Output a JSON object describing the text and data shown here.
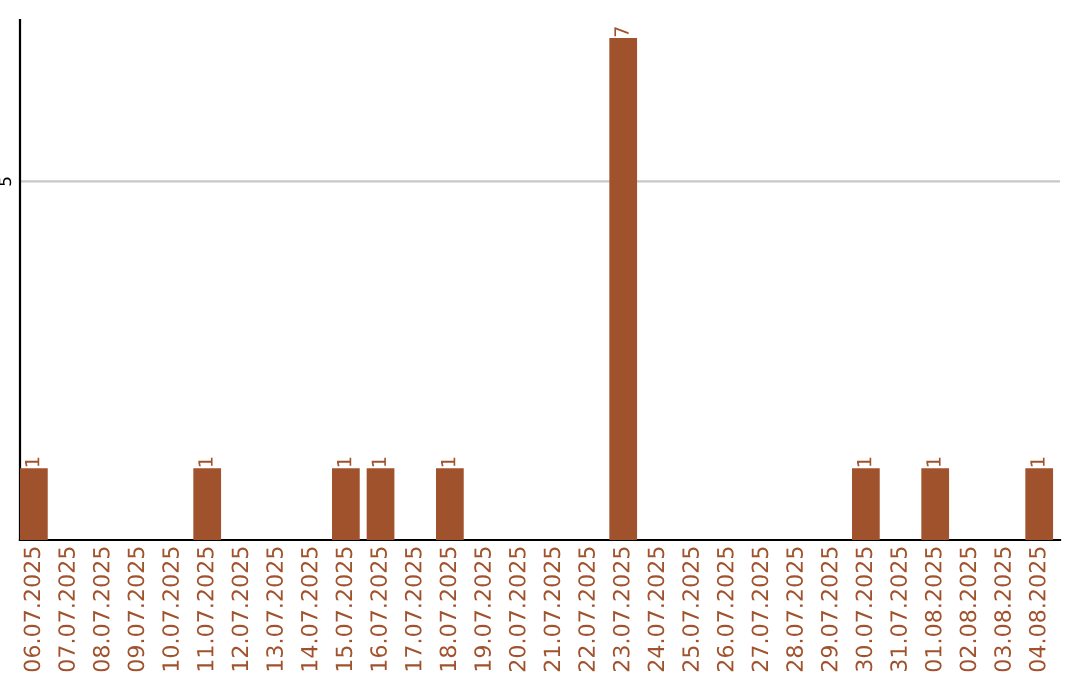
{
  "chart_data": {
    "type": "bar",
    "categories": [
      "06.07.2025",
      "07.07.2025",
      "08.07.2025",
      "09.07.2025",
      "10.07.2025",
      "11.07.2025",
      "12.07.2025",
      "13.07.2025",
      "14.07.2025",
      "15.07.2025",
      "16.07.2025",
      "17.07.2025",
      "18.07.2025",
      "19.07.2025",
      "20.07.2025",
      "21.07.2025",
      "22.07.2025",
      "23.07.2025",
      "24.07.2025",
      "25.07.2025",
      "26.07.2025",
      "27.07.2025",
      "28.07.2025",
      "29.07.2025",
      "30.07.2025",
      "31.07.2025",
      "01.08.2025",
      "02.08.2025",
      "03.08.2025",
      "04.08.2025"
    ],
    "values": [
      1,
      0,
      0,
      0,
      0,
      1,
      0,
      0,
      0,
      1,
      1,
      0,
      1,
      0,
      0,
      0,
      0,
      7,
      0,
      0,
      0,
      0,
      0,
      0,
      1,
      0,
      1,
      0,
      0,
      1
    ],
    "value_labels": [
      "1",
      null,
      null,
      null,
      null,
      "1",
      null,
      null,
      null,
      "1",
      "1",
      null,
      "1",
      null,
      null,
      null,
      null,
      "7",
      null,
      null,
      null,
      null,
      null,
      null,
      "1",
      null,
      "1",
      null,
      null,
      "1"
    ],
    "color": "#a0522d",
    "ylim": [
      0,
      7.25
    ],
    "yticks": [
      5
    ],
    "grid": "y"
  }
}
